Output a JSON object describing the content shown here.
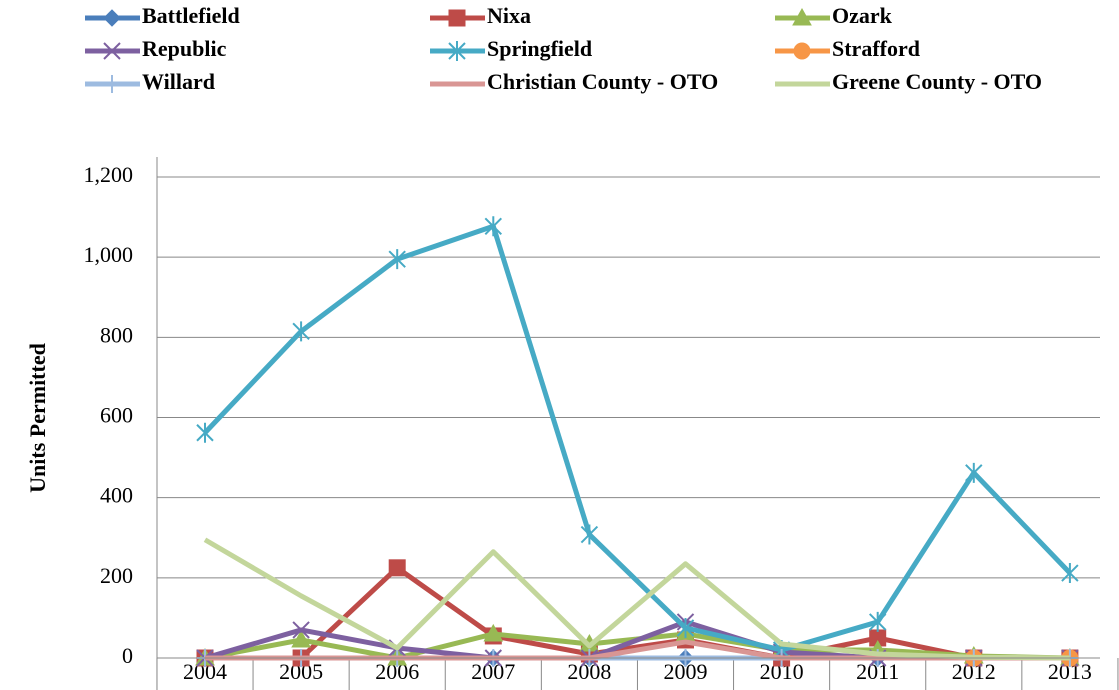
{
  "chart_data": {
    "type": "line",
    "y_label": "Units Permitted",
    "categories": [
      "2004",
      "2005",
      "2006",
      "2007",
      "2008",
      "2009",
      "2010",
      "2011",
      "2012",
      "2013"
    ],
    "ylim": [
      0,
      1200
    ],
    "yticks": [
      0,
      200,
      400,
      600,
      800,
      {
        "value": 1000,
        "label": "1,000"
      },
      {
        "value": 1200,
        "label": "1,200"
      }
    ],
    "grid": true,
    "legend": "top",
    "series": [
      {
        "name": "Battlefield",
        "color": "#4a7ebb",
        "marker": "diamond",
        "values": [
          0,
          0,
          0,
          0,
          0,
          0,
          0,
          0,
          0,
          0
        ]
      },
      {
        "name": "Nixa",
        "color": "#be4b48",
        "marker": "square",
        "values": [
          0,
          0,
          225,
          55,
          10,
          45,
          0,
          50,
          0,
          0
        ]
      },
      {
        "name": "Ozark",
        "color": "#98b954",
        "marker": "triangle",
        "values": [
          0,
          45,
          0,
          60,
          35,
          60,
          20,
          20,
          5,
          0
        ]
      },
      {
        "name": "Republic",
        "color": "#7d60a0",
        "marker": "x",
        "values": [
          0,
          70,
          25,
          0,
          0,
          90,
          15,
          0,
          0,
          0
        ]
      },
      {
        "name": "Springfield",
        "color": "#46aac5",
        "marker": "star",
        "values": [
          562,
          815,
          995,
          1077,
          308,
          75,
          20,
          90,
          462,
          212
        ]
      },
      {
        "name": "Strafford",
        "color": "#f79646",
        "marker": "circle",
        "values": [
          null,
          null,
          null,
          null,
          null,
          null,
          null,
          null,
          0,
          0
        ]
      },
      {
        "name": "Willard",
        "color": "#9dbbe0",
        "marker": "plus",
        "values": [
          0,
          0,
          0,
          0,
          0,
          0,
          0,
          0,
          0,
          0
        ]
      },
      {
        "name": "Christian County - OTO",
        "color": "#d99694",
        "marker": "none",
        "values": [
          0,
          0,
          0,
          0,
          0,
          40,
          0,
          0,
          0,
          0
        ]
      },
      {
        "name": "Greene County - OTO",
        "color": "#c3d69b",
        "marker": "none",
        "values": [
          295,
          155,
          25,
          265,
          30,
          235,
          35,
          10,
          2,
          0
        ]
      }
    ]
  }
}
